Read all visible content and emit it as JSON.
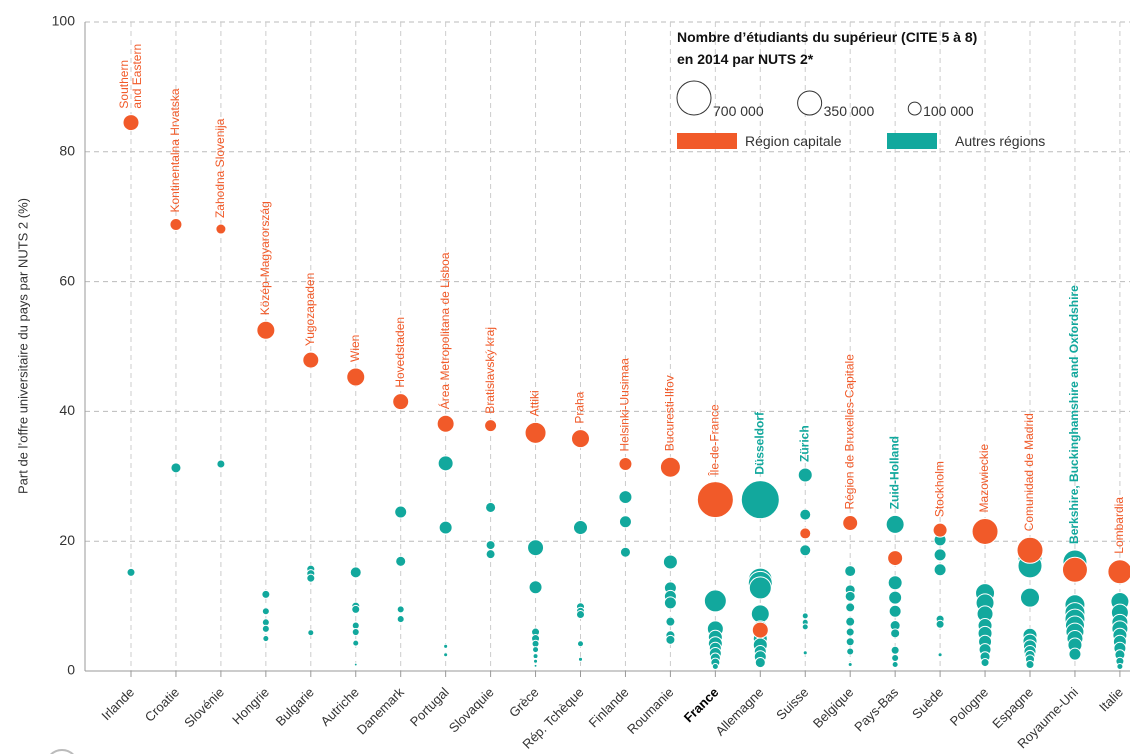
{
  "chart_data": {
    "type": "scatter",
    "y_label": "Part de l’offre universitaire du pays par NUTS 2 (%)",
    "ylim": [
      0,
      100
    ],
    "yticks": [
      0,
      20,
      40,
      60,
      80,
      100
    ],
    "grid": true,
    "highlight_category": "France",
    "categories": [
      "Irlande",
      "Croatie",
      "Slovénie",
      "Hongrie",
      "Bulgarie",
      "Autriche",
      "Danemark",
      "Portugal",
      "Slovaquie",
      "Grèce",
      "Rép. Tchèque",
      "Finlande",
      "Roumanie",
      "France",
      "Allemagne",
      "Suisse",
      "Belgique",
      "Pays-Bas",
      "Suède",
      "Pologne",
      "Espagne",
      "Royaume-Uni",
      "Italie"
    ],
    "size_legend": {
      "title": [
        "Nombre d’étudiants du supérieur (CITE 5 à 8)",
        "en 2014 par NUTS 2*"
      ],
      "sizes": [
        700000,
        350000,
        100000
      ],
      "labels": [
        "700 000",
        "350 000",
        "100 000"
      ]
    },
    "series": [
      {
        "name": "Autres régions",
        "color": "#12a89d",
        "values": [
          [
            15.2
          ],
          [
            31.3
          ],
          [
            31.9
          ],
          [
            11.8,
            9.2,
            7.5,
            6.5,
            5
          ],
          [
            15.7,
            15,
            14.3,
            5.9
          ],
          [
            15.2,
            10,
            9.5,
            7,
            6,
            4.3,
            1
          ],
          [
            24.5,
            16.9,
            9.5,
            8
          ],
          [
            32,
            22.1,
            3.8,
            2.5
          ],
          [
            25.2,
            19.4,
            18
          ],
          [
            19,
            12.9,
            6,
            5,
            4.2,
            3.3,
            2.3,
            1.5,
            0.8
          ],
          [
            22.1,
            9.9,
            9.2,
            8.7,
            4.2,
            1.8
          ],
          [
            26.8,
            23,
            18.3
          ],
          [
            16.8,
            12.8,
            11.5,
            10.5,
            7.6,
            5.5,
            4.8
          ],
          [
            10.8,
            6.5,
            5.2,
            4.2,
            3.5,
            2.7,
            2,
            1.3,
            0.7
          ],
          [
            26.4,
            14,
            13.5,
            12.8,
            8.8,
            6.5,
            5,
            4,
            3,
            2.2,
            1.3
          ],
          [
            30.2,
            24.1,
            18.6,
            8.5,
            7.5,
            6.8,
            2.8
          ],
          [
            15.4,
            12.5,
            11.5,
            9.8,
            7.6,
            6,
            4.5,
            3,
            1
          ],
          [
            22.6,
            13.6,
            11.3,
            9.2,
            7,
            5.8,
            3.2,
            2,
            1
          ],
          [
            20.2,
            17.9,
            15.6,
            8,
            7.2,
            2.5
          ],
          [
            12,
            10.5,
            8.8,
            7,
            5.8,
            4.5,
            3.3,
            2.2,
            1.3
          ],
          [
            17.5,
            16.2,
            11.3,
            5.5,
            4.6,
            3.8,
            3,
            2.4,
            1.8,
            1
          ],
          [
            16.8,
            10.2,
            9,
            8,
            7,
            6,
            5,
            4,
            2.6
          ],
          [
            10.7,
            9,
            7.5,
            6.5,
            5.5,
            4.5,
            3.5,
            2.5,
            1.5,
            0.7
          ]
        ],
        "sizes": [
          [
            39000
          ],
          [
            61000
          ],
          [
            39000
          ],
          [
            39000,
            30000,
            30000,
            30000,
            22000
          ],
          [
            39000,
            39000,
            39000,
            22000
          ],
          [
            73000,
            39000,
            39000,
            30000,
            30000,
            22000,
            5000
          ],
          [
            87000,
            61000,
            30000,
            30000
          ],
          [
            136000,
            102000,
            10000,
            10000
          ],
          [
            61000,
            49000,
            49000
          ],
          [
            155000,
            102000,
            39000,
            39000,
            30000,
            22000,
            15000,
            10000,
            5000
          ],
          [
            119000,
            39000,
            39000,
            39000,
            22000,
            10000
          ],
          [
            102000,
            87000,
            61000
          ],
          [
            119000,
            87000,
            87000,
            87000,
            49000,
            49000,
            49000
          ],
          [
            293000,
            155000,
            119000,
            119000,
            87000,
            87000,
            61000,
            49000,
            22000
          ],
          [
            874000,
            349000,
            349000,
            293000,
            196000,
            155000,
            119000,
            119000,
            87000,
            87000,
            61000
          ],
          [
            119000,
            73000,
            73000,
            22000,
            22000,
            22000,
            10000
          ],
          [
            73000,
            61000,
            61000,
            49000,
            49000,
            39000,
            39000,
            30000,
            10000
          ],
          [
            196000,
            119000,
            102000,
            87000,
            61000,
            49000,
            39000,
            30000,
            22000
          ],
          [
            87000,
            87000,
            87000,
            39000,
            39000,
            10000
          ],
          [
            219000,
            196000,
            155000,
            119000,
            119000,
            102000,
            87000,
            61000,
            39000
          ],
          [
            349000,
            349000,
            219000,
            119000,
            119000,
            102000,
            87000,
            61000,
            49000,
            39000
          ],
          [
            349000,
            242000,
            242000,
            242000,
            219000,
            196000,
            155000,
            119000,
            87000
          ],
          [
            196000,
            175000,
            155000,
            155000,
            119000,
            102000,
            87000,
            61000,
            39000,
            22000
          ]
        ],
        "labels": [
          null,
          null,
          null,
          null,
          null,
          null,
          null,
          null,
          null,
          null,
          null,
          null,
          null,
          null,
          "Düsseldorf",
          "Zürich",
          null,
          "Zuid-Holland",
          null,
          null,
          null,
          "Berkshire, Buckinghamshire and Oxfordshire",
          null
        ]
      },
      {
        "name": "Région capitale",
        "color": "#f15a29",
        "values": [
          84.5,
          68.8,
          68.1,
          52.5,
          47.9,
          45.3,
          41.5,
          38.1,
          37.8,
          36.7,
          35.8,
          31.9,
          31.4,
          26.4,
          6.3,
          21.2,
          22.8,
          17.4,
          21.7,
          21.5,
          18.6,
          15.6,
          15.3
        ],
        "sizes": [
          155000,
          87000,
          61000,
          196000,
          155000,
          196000,
          155000,
          175000,
          87000,
          267000,
          196000,
          102000,
          242000,
          785000,
          155000,
          73000,
          136000,
          136000,
          119000,
          409000,
          409000,
          378000,
          349000
        ],
        "labels": [
          "Southern and Eastern",
          "Kontinentalna Hrvatska",
          "Zahodna Slovenija",
          "Közép-Magyarország",
          "Yugozapaden",
          "Wien",
          "Hovedstaden",
          "Área Metropolitana de Lisboa",
          "Bratislavský kraj",
          "Attiki",
          "Praha",
          "Helsinki-Uusimaa",
          "Bucuresti-Ilfov",
          "Île-de-France",
          null,
          null,
          "Région de Bruxelles-Capitale",
          null,
          "Stockholm",
          "Mazowieckie",
          "Comunidad de Madrid",
          null,
          "Lombardia"
        ]
      }
    ]
  }
}
